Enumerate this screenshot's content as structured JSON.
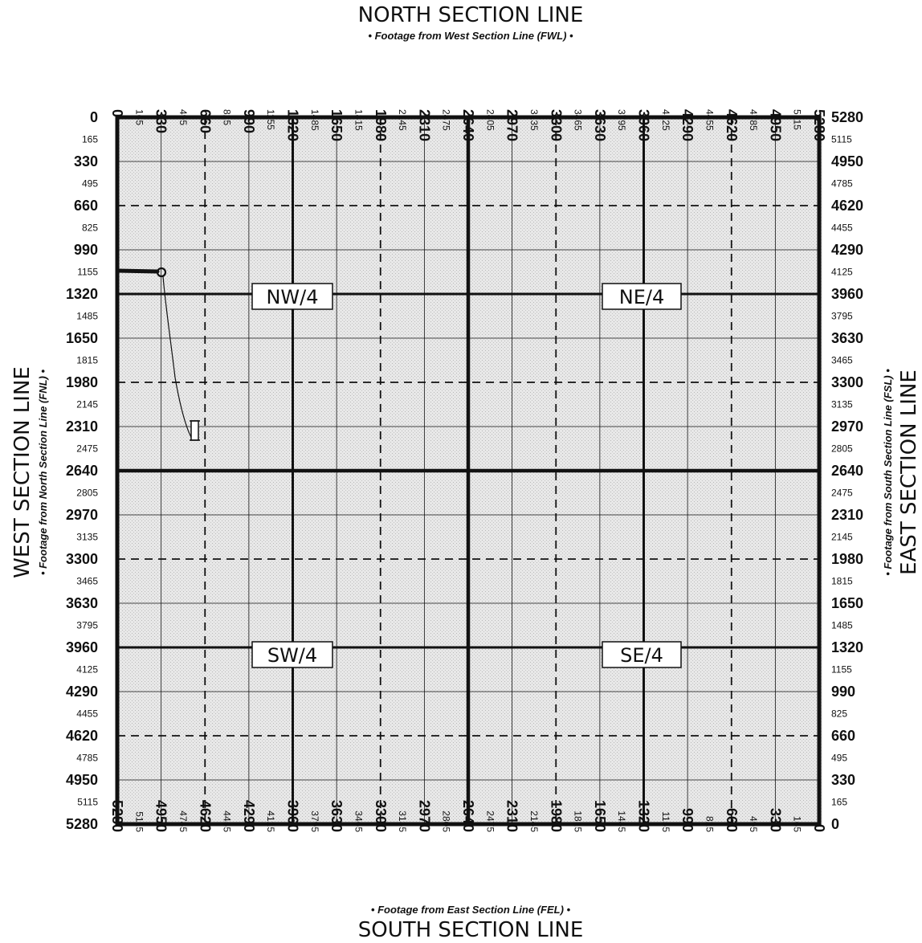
{
  "titles": {
    "north": "NORTH SECTION LINE",
    "north_sub": "• Footage from West Section Line (FWL) •",
    "south": "SOUTH SECTION LINE",
    "south_sub": "• Footage from East Section Line (FEL) •",
    "west": "WEST SECTION LINE",
    "west_sub": "• Footage from North Section Line (FNL) •",
    "east": "EAST SECTION LINE",
    "east_sub": "• Footage from South Section Line (FSL) •"
  },
  "quarters": {
    "nw": "NW/4",
    "ne": "NE/4",
    "sw": "SW/4",
    "se": "SE/4"
  },
  "ticks": {
    "top": [
      "0",
      "165",
      "330",
      "495",
      "660",
      "825",
      "990",
      "1155",
      "1320",
      "1485",
      "1650",
      "1815",
      "1980",
      "2145",
      "2310",
      "2475",
      "2640",
      "2805",
      "2970",
      "3135",
      "3300",
      "3465",
      "3630",
      "3795",
      "3960",
      "4125",
      "4290",
      "4455",
      "4620",
      "4785",
      "4950",
      "5115",
      "5280"
    ],
    "bottom": [
      "5280",
      "5115",
      "4950",
      "4785",
      "4620",
      "4455",
      "4290",
      "4125",
      "3960",
      "3795",
      "3630",
      "3465",
      "3300",
      "3135",
      "2970",
      "2805",
      "2640",
      "2475",
      "2310",
      "2145",
      "1980",
      "1815",
      "1650",
      "1485",
      "1320",
      "1155",
      "990",
      "825",
      "660",
      "495",
      "330",
      "165",
      "0"
    ],
    "left": [
      "0",
      "165",
      "330",
      "495",
      "660",
      "825",
      "990",
      "1155",
      "1320",
      "1485",
      "1650",
      "1815",
      "1980",
      "2145",
      "2310",
      "2475",
      "2640",
      "2805",
      "2970",
      "3135",
      "3300",
      "3465",
      "3630",
      "3795",
      "3960",
      "4125",
      "4290",
      "4455",
      "4620",
      "4785",
      "4950",
      "5115",
      "5280"
    ],
    "right": [
      "5280",
      "5115",
      "4950",
      "4785",
      "4620",
      "4455",
      "4290",
      "4125",
      "3960",
      "3795",
      "3630",
      "3465",
      "3300",
      "3135",
      "2970",
      "2805",
      "2640",
      "2475",
      "2310",
      "2145",
      "1980",
      "1815",
      "1650",
      "1485",
      "1320",
      "1155",
      "990",
      "825",
      "660",
      "495",
      "330",
      "165",
      "0"
    ]
  },
  "colors": {
    "ink": "#111111",
    "grid_fill": "#e4e4e4",
    "background": "#ffffff"
  }
}
